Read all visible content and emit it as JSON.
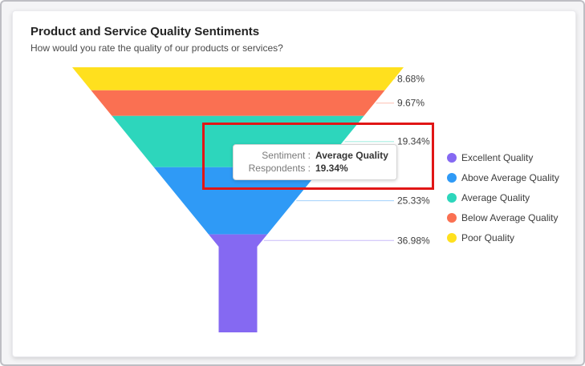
{
  "card": {
    "title": "Product and Service Quality Sentiments",
    "subtitle": "How would you rate the quality of our products or services?"
  },
  "chart_data": {
    "type": "funnel",
    "title": "Product and Service Quality Sentiments",
    "subtitle": "How would you rate the quality of our products or services?",
    "categories": [
      "Poor Quality",
      "Below Average Quality",
      "Average Quality",
      "Above Average Quality",
      "Excellent Quality"
    ],
    "values": [
      8.68,
      9.67,
      19.34,
      25.33,
      36.98
    ],
    "labels": [
      "8.68%",
      "9.67%",
      "19.34%",
      "25.33%",
      "36.98%"
    ],
    "colors": [
      "#FFE01E",
      "#FA7052",
      "#2DD6BC",
      "#2F9AF6",
      "#8569F2"
    ],
    "value_unit": "percent_of_respondents",
    "legend_position": "right",
    "legend": [
      {
        "label": "Excellent Quality",
        "color": "#8569F2"
      },
      {
        "label": "Above Average Quality",
        "color": "#2F9AF6"
      },
      {
        "label": "Average Quality",
        "color": "#2DD6BC"
      },
      {
        "label": "Below Average Quality",
        "color": "#FA7052"
      },
      {
        "label": "Poor Quality",
        "color": "#FFE01E"
      }
    ]
  },
  "tooltip": {
    "rows": [
      {
        "label": "Sentiment :",
        "value": "Average Quality"
      },
      {
        "label": "Respondents :",
        "value": "19.34%"
      }
    ]
  },
  "highlight": {
    "color": "#E11616"
  }
}
